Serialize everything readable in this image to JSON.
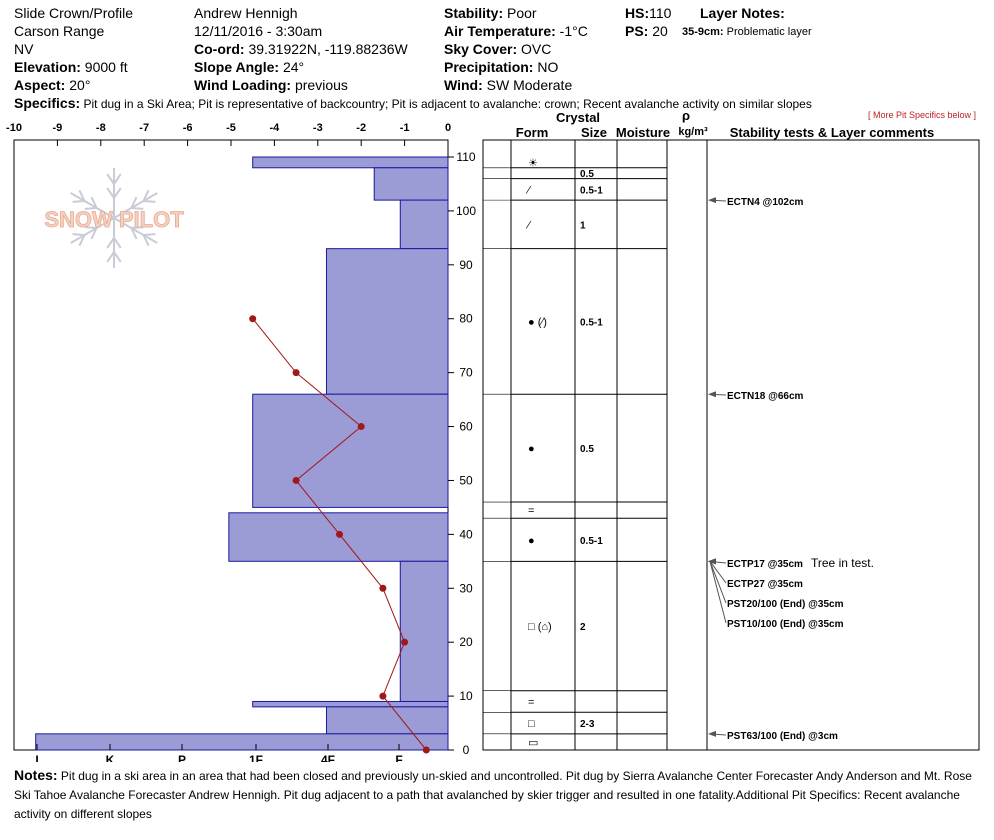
{
  "header": {
    "location": "Slide Crown/Profile",
    "range": "Carson Range",
    "state": "NV",
    "elevation_label": "Elevation:",
    "elevation_value": "9000 ft",
    "aspect_label": "Aspect:",
    "aspect_value": "20°",
    "observer": "Andrew Hennigh",
    "datetime": "12/11/2016 - 3:30am",
    "coord_label": "Co-ord:",
    "coord_value": "39.31922N, -119.88236W",
    "slope_label": "Slope Angle:",
    "slope_value": "24°",
    "wind_loading_label": "Wind Loading:",
    "wind_loading_value": "previous",
    "stability_label": "Stability:",
    "stability_value": "Poor",
    "air_temp_label": "Air Temperature:",
    "air_temp_value": "-1°C",
    "sky_label": "Sky Cover:",
    "sky_value": "OVC",
    "precip_label": "Precipitation:",
    "precip_value": "NO",
    "wind_label": "Wind:",
    "wind_value": "SW Moderate",
    "hs_label": "HS:",
    "hs_value": "110",
    "ps_label": "PS:",
    "ps_value": "20",
    "layer_notes_label": "Layer Notes:",
    "layer_note_depth": "35-9cm:",
    "layer_note_text": "Problematic layer",
    "specifics_label": "Specifics:",
    "specifics_text": "Pit dug in a Ski Area; Pit is representative of backcountry; Pit is adjacent to avalanche: crown; Recent avalanche activity on similar slopes",
    "more_link": "[ More Pit Specifics below ]"
  },
  "logo": {
    "text": "SNOW PILOT"
  },
  "table_headers": {
    "crystal": "Crystal",
    "form": "Form",
    "size": "Size",
    "moisture": "Moisture",
    "rho": "ρ",
    "density_unit": "kg/m³",
    "stability": "Stability tests & Layer comments"
  },
  "chart_data": {
    "type": "bar",
    "description_axes": "hardness profile with temperature line",
    "x_ticks": [
      "-10",
      "-9",
      "-8",
      "-7",
      "-6",
      "-5",
      "-4",
      "-3",
      "-2",
      "-1",
      "0"
    ],
    "hardness_ticks": [
      "I",
      "K",
      "P",
      "1F",
      "4F",
      "F"
    ],
    "y_ticks": [
      0,
      10,
      20,
      30,
      40,
      50,
      60,
      70,
      80,
      90,
      100,
      110
    ],
    "ylim": [
      0,
      110
    ],
    "xlim": [
      -10,
      0
    ],
    "hardness_bars": [
      {
        "bottom": 108,
        "top": 110,
        "value": -4.5
      },
      {
        "bottom": 102,
        "top": 108,
        "value": -1.7
      },
      {
        "bottom": 93,
        "top": 102,
        "value": -1.1
      },
      {
        "bottom": 66,
        "top": 93,
        "value": -2.8
      },
      {
        "bottom": 45,
        "top": 66,
        "value": -4.5
      },
      {
        "bottom": 35,
        "top": 44,
        "value": -5.05
      },
      {
        "bottom": 9,
        "top": 35,
        "value": -1.1
      },
      {
        "bottom": 8,
        "top": 9,
        "value": -4.5
      },
      {
        "bottom": 3,
        "top": 8,
        "value": -2.8
      },
      {
        "bottom": 0,
        "top": 3,
        "value": -9.5
      }
    ],
    "temperature": [
      {
        "depth": 80,
        "temp": -4.5
      },
      {
        "depth": 70,
        "temp": -3.5
      },
      {
        "depth": 60,
        "temp": -2.0
      },
      {
        "depth": 50,
        "temp": -3.5
      },
      {
        "depth": 40,
        "temp": -2.5
      },
      {
        "depth": 30,
        "temp": -1.5
      },
      {
        "depth": 20,
        "temp": -1.0
      },
      {
        "depth": 10,
        "temp": -1.5
      },
      {
        "depth": 0,
        "temp": -0.5
      }
    ],
    "layers": [
      {
        "bottom": 108,
        "top": 110,
        "form": "☀",
        "size": ""
      },
      {
        "bottom": 106,
        "top": 108,
        "form": "",
        "size": "0.5"
      },
      {
        "bottom": 102,
        "top": 106,
        "form": "⁄",
        "size": "0.5-1"
      },
      {
        "bottom": 93,
        "top": 102,
        "form": "⁄",
        "size": "1"
      },
      {
        "bottom": 66,
        "top": 93,
        "form": "● (⁄)",
        "size": "0.5-1"
      },
      {
        "bottom": 46,
        "top": 66,
        "form": "●",
        "size": "0.5"
      },
      {
        "bottom": 43,
        "top": 46,
        "form": "=",
        "size": ""
      },
      {
        "bottom": 35,
        "top": 43,
        "form": "●",
        "size": "0.5-1"
      },
      {
        "bottom": 11,
        "top": 35,
        "form": "□ (⌂)",
        "size": "2"
      },
      {
        "bottom": 7,
        "top": 11,
        "form": "=",
        "size": ""
      },
      {
        "bottom": 3,
        "top": 7,
        "form": "□",
        "size": "2-3"
      },
      {
        "bottom": 0,
        "top": 3,
        "form": "▭",
        "size": ""
      }
    ],
    "stability_tests": [
      {
        "depth": 102,
        "label": "ECTN4 @102cm"
      },
      {
        "depth": 66,
        "label": "ECTN18 @66cm"
      },
      {
        "depth": 35,
        "label": "ECTP17 @35cm",
        "comment": "Tree in test."
      },
      {
        "depth": 35,
        "label": "ECTP27 @35cm"
      },
      {
        "depth": 35,
        "label": "PST20/100 (End) @35cm"
      },
      {
        "depth": 35,
        "label": "PST10/100 (End) @35cm"
      },
      {
        "depth": 3,
        "label": "PST63/100 (End) @3cm"
      }
    ]
  },
  "notes": {
    "label": "Notes:",
    "text": "Pit dug in a ski area in an area that had been closed and previously un-skied and uncontrolled. Pit dug by Sierra Avalanche Center Forecaster Andy Anderson and Mt. Rose Ski Tahoe Avalanche Forecaster Andrew Hennigh. Pit dug adjacent to a path that avalanched by skier trigger and resulted in one fatality.Additional Pit Specifics: Recent avalanche activity on different slopes"
  },
  "colors": {
    "bar_fill": "#9b9bd6",
    "bar_stroke": "#1a1aa0",
    "temp_line": "#a01818"
  }
}
